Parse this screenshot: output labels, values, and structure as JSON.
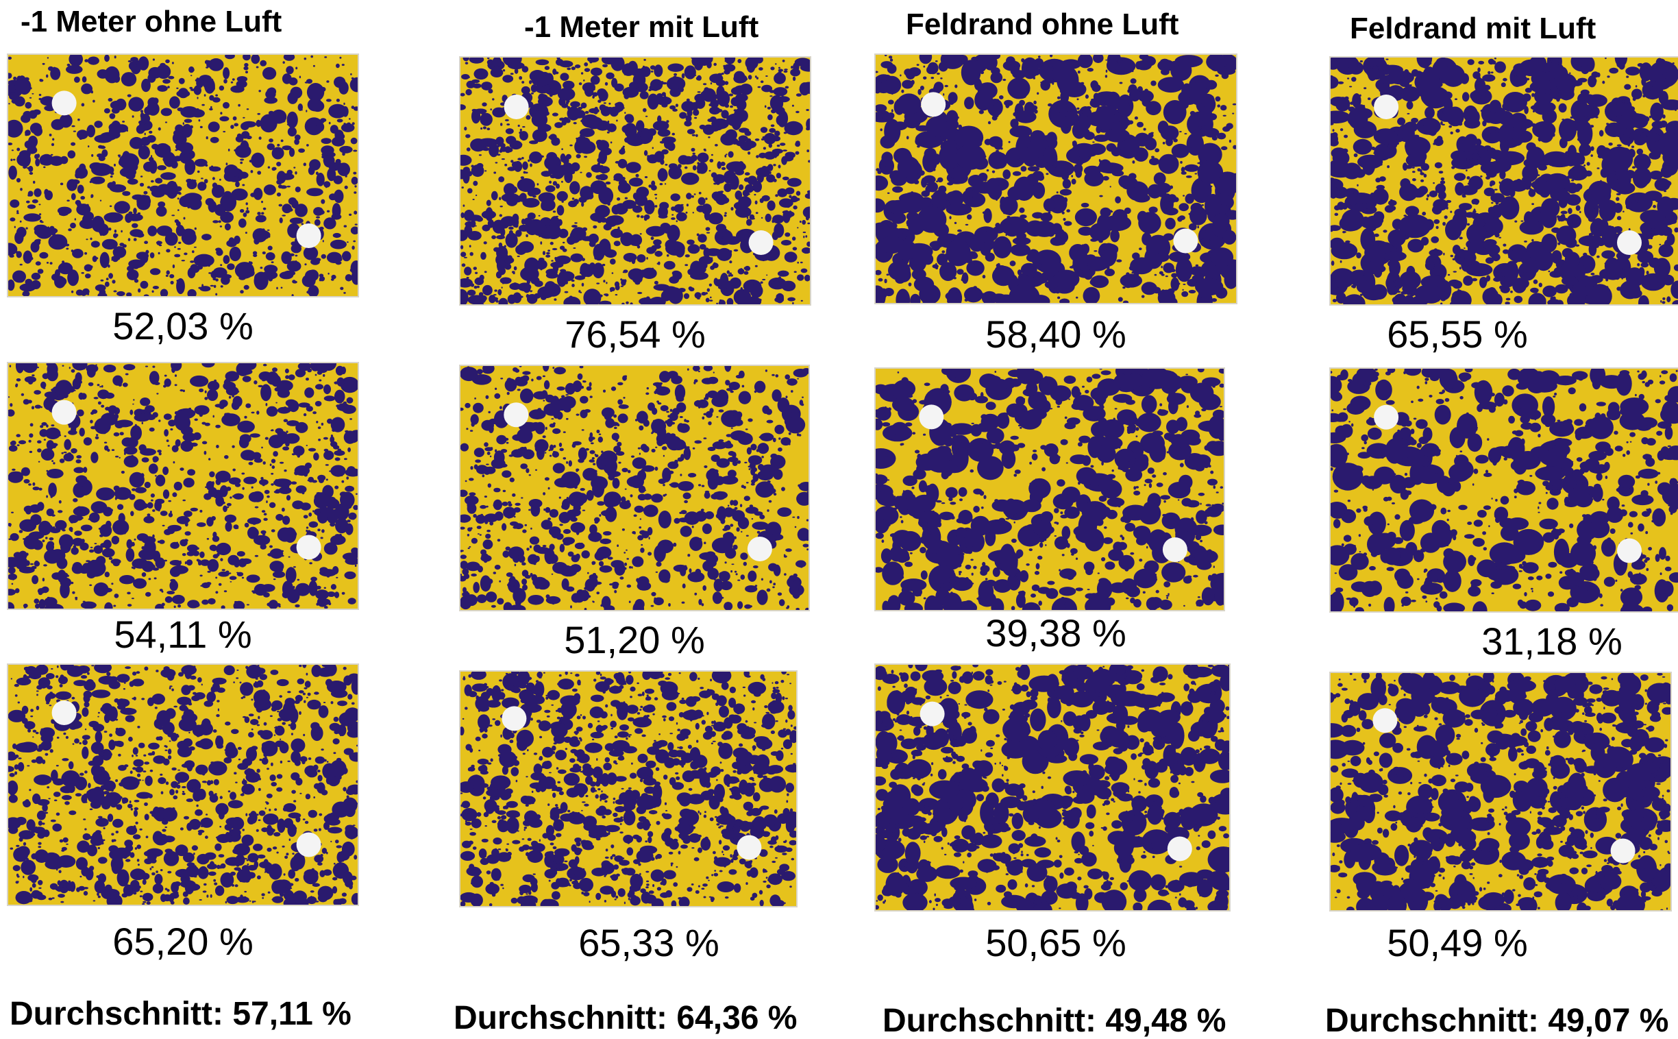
{
  "columns": [
    {
      "title": "-1 Meter ohne Luft",
      "average": "Durchschnitt: 57,11 %",
      "cards": [
        {
          "coverage": "52,03 %",
          "dark": 0.52
        },
        {
          "coverage": "54,11 %",
          "dark": 0.54
        },
        {
          "coverage": "65,20 %",
          "dark": 0.65
        }
      ]
    },
    {
      "title": "-1 Meter mit Luft",
      "average": "Durchschnitt: 64,36 %",
      "cards": [
        {
          "coverage": "76,54 %",
          "dark": 0.77
        },
        {
          "coverage": "51,20 %",
          "dark": 0.51
        },
        {
          "coverage": "65,33 %",
          "dark": 0.65
        }
      ]
    },
    {
      "title": "Feldrand ohne Luft",
      "average": "Durchschnitt: 49,48 %",
      "cards": [
        {
          "coverage": "58,40 %",
          "dark": 0.58
        },
        {
          "coverage": "39,38 %",
          "dark": 0.39
        },
        {
          "coverage": "50,65 %",
          "dark": 0.51
        }
      ]
    },
    {
      "title": "Feldrand mit Luft",
      "average": "Durchschnitt: 49,07 %",
      "cards": [
        {
          "coverage": "65,55 %",
          "dark": 0.66
        },
        {
          "coverage": "31,18 %",
          "dark": 0.31
        },
        {
          "coverage": "50,49 %",
          "dark": 0.5
        }
      ]
    }
  ],
  "colors": {
    "card_yellow": "#e6c21c",
    "stain_purple": "#2a1a6e",
    "hole": "#f4f4f4"
  }
}
